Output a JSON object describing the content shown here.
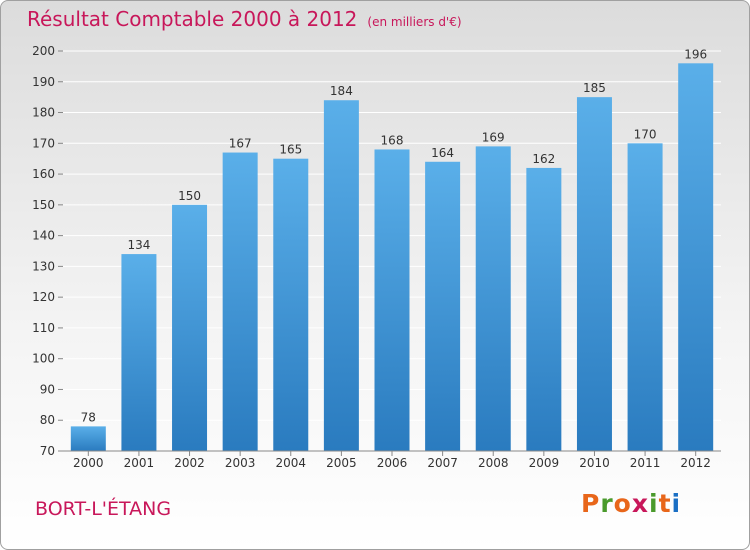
{
  "header": {
    "title": "Résultat Comptable 2000 à 2012",
    "unit": "(en milliers d'€)"
  },
  "footer": {
    "town": "BORT-L'ÉTANG",
    "logo_text": "Proxiti"
  },
  "colors": {
    "title": "#c8175a",
    "bar_top": "#5aafe9",
    "bar_bottom": "#2a7bbf",
    "logo_letters": [
      "#e8661a",
      "#4a9a2c",
      "#e8661a",
      "#c8175a",
      "#4a9a2c",
      "#e8661a",
      "#1a6fc4"
    ]
  },
  "chart_data": {
    "type": "bar",
    "title": "Résultat Comptable 2000 à 2012",
    "subtitle": "(en milliers d'€)",
    "categories": [
      "2000",
      "2001",
      "2002",
      "2003",
      "2004",
      "2005",
      "2006",
      "2007",
      "2008",
      "2009",
      "2010",
      "2011",
      "2012"
    ],
    "values": [
      78,
      134,
      150,
      167,
      165,
      184,
      168,
      164,
      169,
      162,
      185,
      170,
      196
    ],
    "ylim": [
      70,
      200
    ],
    "yticks": [
      70,
      80,
      90,
      100,
      110,
      120,
      130,
      140,
      150,
      160,
      170,
      180,
      190,
      200
    ],
    "xlabel": "",
    "ylabel": "",
    "grid": true,
    "data_labels": true
  }
}
